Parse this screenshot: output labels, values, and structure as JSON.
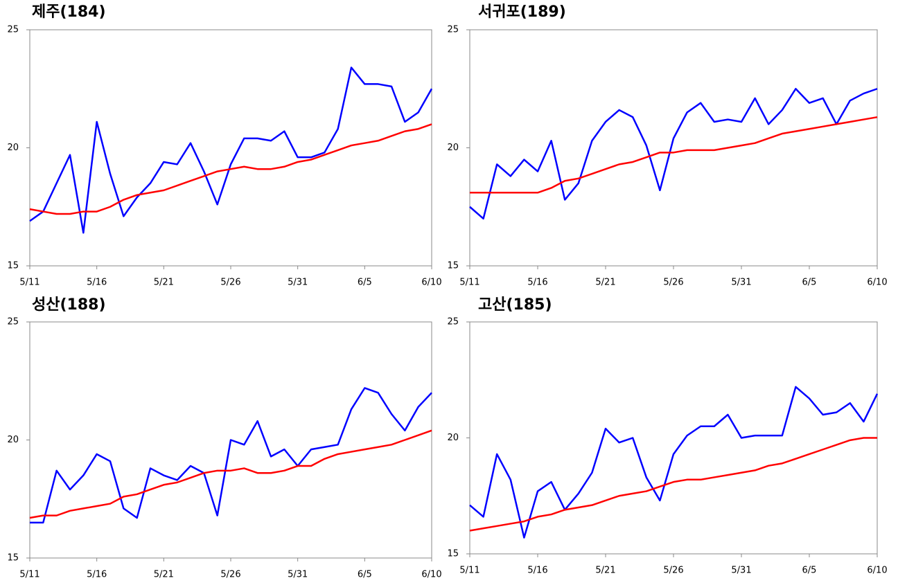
{
  "chart_data": [
    {
      "type": "line",
      "title": "제주(184)",
      "categories": [
        "5/11",
        null,
        null,
        null,
        null,
        "5/16",
        null,
        null,
        null,
        null,
        "5/21",
        null,
        null,
        null,
        null,
        "5/26",
        null,
        null,
        null,
        null,
        "5/31",
        null,
        null,
        null,
        null,
        "6/5",
        null,
        null,
        null,
        null,
        "6/10"
      ],
      "series": [
        {
          "color": "#0000ff",
          "values": [
            16.9,
            17.3,
            18.5,
            19.7,
            16.4,
            21.1,
            18.9,
            17.1,
            17.9,
            18.5,
            19.4,
            19.3,
            20.2,
            19.0,
            17.6,
            19.3,
            20.4,
            20.4,
            20.3,
            20.7,
            19.6,
            19.6,
            19.8,
            20.8,
            23.4,
            22.7,
            22.7,
            22.6,
            21.1,
            21.5,
            22.5
          ]
        },
        {
          "color": "#ff0000",
          "values": [
            17.4,
            17.3,
            17.2,
            17.2,
            17.3,
            17.3,
            17.5,
            17.8,
            18.0,
            18.1,
            18.2,
            18.4,
            18.6,
            18.8,
            19.0,
            19.1,
            19.2,
            19.1,
            19.1,
            19.2,
            19.4,
            19.5,
            19.7,
            19.9,
            20.1,
            20.2,
            20.3,
            20.5,
            20.7,
            20.8,
            21.0
          ]
        }
      ],
      "ylim": [
        15,
        25
      ],
      "yticks": [
        15,
        20,
        25
      ]
    },
    {
      "type": "line",
      "title": "서귀포(189)",
      "categories": [
        "5/11",
        null,
        null,
        null,
        null,
        "5/16",
        null,
        null,
        null,
        null,
        "5/21",
        null,
        null,
        null,
        null,
        "5/26",
        null,
        null,
        null,
        null,
        "5/31",
        null,
        null,
        null,
        null,
        "6/5",
        null,
        null,
        null,
        null,
        "6/10"
      ],
      "series": [
        {
          "color": "#0000ff",
          "values": [
            17.5,
            17.0,
            19.3,
            18.8,
            19.5,
            19.0,
            20.3,
            17.8,
            18.5,
            20.3,
            21.1,
            21.6,
            21.3,
            20.1,
            18.2,
            20.4,
            21.5,
            21.9,
            21.1,
            21.2,
            21.1,
            22.1,
            21.0,
            21.6,
            22.5,
            21.9,
            22.1,
            21.0,
            22.0,
            22.3,
            22.5
          ]
        },
        {
          "color": "#ff0000",
          "values": [
            18.1,
            18.1,
            18.1,
            18.1,
            18.1,
            18.1,
            18.3,
            18.6,
            18.7,
            18.9,
            19.1,
            19.3,
            19.4,
            19.6,
            19.8,
            19.8,
            19.9,
            19.9,
            19.9,
            20.0,
            20.1,
            20.2,
            20.4,
            20.6,
            20.7,
            20.8,
            20.9,
            21.0,
            21.1,
            21.2,
            21.3
          ]
        }
      ],
      "ylim": [
        15,
        25
      ],
      "yticks": [
        15,
        20,
        25
      ]
    },
    {
      "type": "line",
      "title": "성산(188)",
      "categories": [
        "5/11",
        null,
        null,
        null,
        null,
        "5/16",
        null,
        null,
        null,
        null,
        "5/21",
        null,
        null,
        null,
        null,
        "5/26",
        null,
        null,
        null,
        null,
        "5/31",
        null,
        null,
        null,
        null,
        "6/5",
        null,
        null,
        null,
        null,
        "6/10"
      ],
      "series": [
        {
          "color": "#0000ff",
          "values": [
            16.5,
            16.5,
            18.7,
            17.9,
            18.5,
            19.4,
            19.1,
            17.1,
            16.7,
            18.8,
            18.5,
            18.3,
            18.9,
            18.6,
            16.8,
            20.0,
            19.8,
            20.8,
            19.3,
            19.6,
            18.9,
            19.6,
            19.7,
            19.8,
            21.3,
            22.2,
            22.0,
            21.1,
            20.4,
            21.4,
            22.0
          ]
        },
        {
          "color": "#ff0000",
          "values": [
            16.7,
            16.8,
            16.8,
            17.0,
            17.1,
            17.2,
            17.3,
            17.6,
            17.7,
            17.9,
            18.1,
            18.2,
            18.4,
            18.6,
            18.7,
            18.7,
            18.8,
            18.6,
            18.6,
            18.7,
            18.9,
            18.9,
            19.2,
            19.4,
            19.5,
            19.6,
            19.7,
            19.8,
            20.0,
            20.2,
            20.4
          ]
        }
      ],
      "ylim": [
        15,
        25
      ],
      "yticks": [
        15,
        20,
        25
      ]
    },
    {
      "type": "line",
      "title": "고산(185)",
      "categories": [
        "5/11",
        null,
        null,
        null,
        null,
        "5/16",
        null,
        null,
        null,
        null,
        "5/21",
        null,
        null,
        null,
        null,
        "5/26",
        null,
        null,
        null,
        null,
        "5/31",
        null,
        null,
        null,
        null,
        "6/5",
        null,
        null,
        null,
        null,
        "6/10"
      ],
      "series": [
        {
          "color": "#0000ff",
          "values": [
            17.1,
            16.6,
            19.3,
            18.2,
            15.7,
            17.7,
            18.1,
            16.9,
            17.6,
            18.5,
            20.4,
            19.8,
            20.0,
            18.3,
            17.3,
            19.3,
            20.1,
            20.5,
            20.5,
            21.0,
            20.0,
            20.1,
            20.1,
            20.1,
            22.2,
            21.7,
            21.0,
            21.1,
            21.5,
            20.7,
            21.9
          ]
        },
        {
          "color": "#ff0000",
          "values": [
            16.0,
            16.1,
            16.2,
            16.3,
            16.4,
            16.6,
            16.7,
            16.9,
            17.0,
            17.1,
            17.3,
            17.5,
            17.6,
            17.7,
            17.9,
            18.1,
            18.2,
            18.2,
            18.3,
            18.4,
            18.5,
            18.6,
            18.8,
            18.9,
            19.1,
            19.3,
            19.5,
            19.7,
            19.9,
            20.0,
            20.0
          ]
        }
      ],
      "ylim": [
        15,
        25
      ],
      "yticks": [
        15,
        20,
        25
      ]
    }
  ]
}
